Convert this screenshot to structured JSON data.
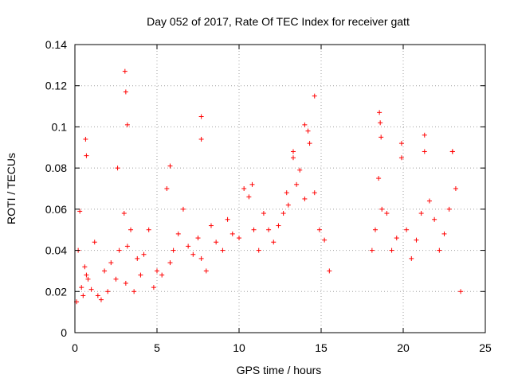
{
  "chart_data": {
    "type": "scatter",
    "title": "Day 052 of 2017, Rate Of TEC Index for receiver gatt",
    "xlabel": "GPS time / hours",
    "ylabel": "ROTI / TECUs",
    "xlim": [
      0,
      25
    ],
    "ylim": [
      0,
      0.14
    ],
    "x_ticks": [
      0,
      5,
      10,
      15,
      20,
      25
    ],
    "x_tick_labels": [
      "0",
      "5",
      "10",
      "15",
      "20",
      "25"
    ],
    "y_ticks": [
      0,
      0.02,
      0.04,
      0.06,
      0.08,
      0.1,
      0.12,
      0.14
    ],
    "y_tick_labels": [
      "0",
      "0.02",
      "0.04",
      "0.06",
      "0.08",
      "0.1",
      "0.12",
      "0.14"
    ],
    "grid": true,
    "marker": "plus",
    "color": "#ff0000",
    "data_gap_hours": [
      15.7,
      18.0
    ],
    "series": [
      {
        "x": [
          0.1,
          0.2,
          0.3,
          0.4,
          0.5,
          0.6,
          0.7,
          0.8,
          1.0,
          1.2,
          1.4,
          1.6,
          1.8,
          2.0,
          2.2,
          2.5,
          2.7,
          3.0,
          3.1,
          3.2,
          3.4,
          3.6,
          3.8,
          4.0,
          4.2,
          4.5,
          4.8,
          5.0,
          5.3,
          5.6,
          5.8,
          6.0,
          6.3,
          6.6,
          6.9,
          7.2,
          7.5,
          7.7,
          8.0,
          8.3,
          8.6,
          9.0,
          9.3,
          9.6,
          10.0,
          10.3,
          10.6,
          10.9,
          11.2,
          11.5,
          11.8,
          12.1,
          12.4,
          12.7,
          13.0,
          13.3,
          13.5,
          13.7,
          14.0,
          14.3,
          14.6,
          14.9,
          15.2,
          15.5,
          18.1,
          18.3,
          18.5,
          18.7,
          19.0,
          19.3,
          19.6,
          19.9,
          20.2,
          20.5,
          20.8,
          21.1,
          21.3,
          21.6,
          21.9,
          22.2,
          22.5,
          22.8,
          23.0,
          23.2,
          23.5,
          0.65,
          0.7,
          3.05,
          3.1,
          3.2,
          2.6,
          5.8,
          7.7,
          7.7,
          14.0,
          14.2,
          14.6,
          18.55,
          18.6,
          18.65,
          19.9,
          21.3,
          23.0,
          13.3,
          10.8,
          12.9
        ],
        "y": [
          0.015,
          0.04,
          0.059,
          0.022,
          0.018,
          0.032,
          0.028,
          0.026,
          0.021,
          0.044,
          0.018,
          0.016,
          0.03,
          0.02,
          0.034,
          0.026,
          0.04,
          0.058,
          0.024,
          0.042,
          0.05,
          0.02,
          0.036,
          0.028,
          0.038,
          0.05,
          0.022,
          0.03,
          0.028,
          0.07,
          0.034,
          0.04,
          0.048,
          0.06,
          0.042,
          0.038,
          0.046,
          0.036,
          0.03,
          0.052,
          0.044,
          0.04,
          0.055,
          0.048,
          0.046,
          0.07,
          0.066,
          0.05,
          0.04,
          0.058,
          0.05,
          0.044,
          0.052,
          0.058,
          0.062,
          0.085,
          0.072,
          0.079,
          0.065,
          0.092,
          0.068,
          0.05,
          0.045,
          0.03,
          0.04,
          0.05,
          0.075,
          0.06,
          0.058,
          0.04,
          0.046,
          0.085,
          0.05,
          0.036,
          0.045,
          0.058,
          0.088,
          0.064,
          0.055,
          0.04,
          0.048,
          0.06,
          0.088,
          0.07,
          0.02,
          0.094,
          0.086,
          0.127,
          0.117,
          0.101,
          0.08,
          0.081,
          0.105,
          0.094,
          0.101,
          0.098,
          0.115,
          0.107,
          0.102,
          0.095,
          0.092,
          0.096,
          0.088,
          0.088,
          0.072,
          0.068
        ]
      }
    ]
  }
}
